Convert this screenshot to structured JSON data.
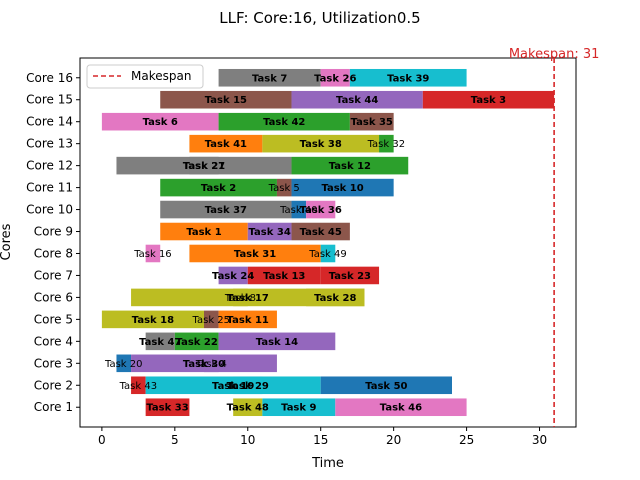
{
  "chart_data": {
    "type": "gantt",
    "title": "LLF: Core:16, Utilization0.5",
    "xlabel": "Time",
    "ylabel": "Cores",
    "xlim": [
      -1.5,
      32.5
    ],
    "xticks": [
      0,
      5,
      10,
      15,
      20,
      25,
      30
    ],
    "cores": [
      "Core 1",
      "Core 2",
      "Core 3",
      "Core 4",
      "Core 5",
      "Core 6",
      "Core 7",
      "Core 8",
      "Core 9",
      "Core 10",
      "Core 11",
      "Core 12",
      "Core 13",
      "Core 14",
      "Core 15",
      "Core 16"
    ],
    "makespan": 31,
    "makespan_label": "Makespan: 31",
    "makespan_color": "#d62728",
    "legend": {
      "label": "Makespan",
      "location": "upper-left"
    },
    "tasks": [
      {
        "core": 1,
        "name": "Task 33",
        "start": 3,
        "end": 6,
        "color": "#d62728"
      },
      {
        "core": 1,
        "name": "Task 48",
        "start": 9,
        "end": 11,
        "color": "#bcbd22"
      },
      {
        "core": 1,
        "name": "Task 9",
        "start": 11,
        "end": 16,
        "color": "#17becf"
      },
      {
        "core": 1,
        "name": "Task 46",
        "start": 16,
        "end": 25,
        "color": "#e377c2"
      },
      {
        "core": 2,
        "name": "Task 43",
        "start": 2,
        "end": 3,
        "color": "#d62728"
      },
      {
        "core": 2,
        "name": "Task 19",
        "start": 3,
        "end": 15,
        "color": "#17becf"
      },
      {
        "core": 2,
        "name": "Task 29",
        "start": 9,
        "end": 11,
        "color": "#17becf"
      },
      {
        "core": 2,
        "name": "Task 50",
        "start": 15,
        "end": 24,
        "color": "#1f77b4"
      },
      {
        "core": 3,
        "name": "Task 20",
        "start": 1,
        "end": 2,
        "color": "#1f77b4"
      },
      {
        "core": 3,
        "name": "Task 30",
        "start": 2,
        "end": 12,
        "color": "#9467bd"
      },
      {
        "core": 3,
        "name": "Task 4",
        "start": 7,
        "end": 8,
        "color": "#9467bd"
      },
      {
        "core": 4,
        "name": "Task 47",
        "start": 3,
        "end": 5,
        "color": "#7f7f7f"
      },
      {
        "core": 4,
        "name": "Task 22",
        "start": 5,
        "end": 8,
        "color": "#2ca02c"
      },
      {
        "core": 4,
        "name": "Task 14",
        "start": 8,
        "end": 16,
        "color": "#9467bd"
      },
      {
        "core": 5,
        "name": "Task 18",
        "start": 0,
        "end": 7,
        "color": "#bcbd22"
      },
      {
        "core": 5,
        "name": "Task 25",
        "start": 7,
        "end": 8,
        "color": "#8c564b"
      },
      {
        "core": 5,
        "name": "Task 11",
        "start": 8,
        "end": 12,
        "color": "#ff7f0e"
      },
      {
        "core": 6,
        "name": "Task 17",
        "start": 2,
        "end": 18,
        "color": "#bcbd22"
      },
      {
        "core": 6,
        "name": "Task 8",
        "start": 9,
        "end": 10,
        "color": "#bcbd22"
      },
      {
        "core": 6,
        "name": "Task 28",
        "start": 14,
        "end": 18,
        "color": "#bcbd22"
      },
      {
        "core": 7,
        "name": "Task 24",
        "start": 8,
        "end": 10,
        "color": "#9467bd"
      },
      {
        "core": 7,
        "name": "Task 13",
        "start": 10,
        "end": 15,
        "color": "#d62728"
      },
      {
        "core": 7,
        "name": "Task 23",
        "start": 15,
        "end": 19,
        "color": "#d62728"
      },
      {
        "core": 8,
        "name": "Task 16",
        "start": 3,
        "end": 4,
        "color": "#e377c2"
      },
      {
        "core": 8,
        "name": "Task 31",
        "start": 6,
        "end": 15,
        "color": "#ff7f0e"
      },
      {
        "core": 8,
        "name": "Task 49",
        "start": 15,
        "end": 16,
        "color": "#17becf"
      },
      {
        "core": 9,
        "name": "Task 1",
        "start": 4,
        "end": 10,
        "color": "#ff7f0e"
      },
      {
        "core": 9,
        "name": "Task 34",
        "start": 10,
        "end": 13,
        "color": "#9467bd"
      },
      {
        "core": 9,
        "name": "Task 45",
        "start": 13,
        "end": 17,
        "color": "#8c564b"
      },
      {
        "core": 10,
        "name": "Task 37",
        "start": 4,
        "end": 13,
        "color": "#7f7f7f"
      },
      {
        "core": 10,
        "name": "Task 40",
        "start": 13,
        "end": 14,
        "color": "#1f77b4"
      },
      {
        "core": 10,
        "name": "Task 36",
        "start": 14,
        "end": 16,
        "color": "#e377c2"
      },
      {
        "core": 11,
        "name": "Task 2",
        "start": 4,
        "end": 12,
        "color": "#2ca02c"
      },
      {
        "core": 11,
        "name": "Task 5",
        "start": 12,
        "end": 13,
        "color": "#8c564b"
      },
      {
        "core": 11,
        "name": "Task 10",
        "start": 13,
        "end": 20,
        "color": "#1f77b4"
      },
      {
        "core": 12,
        "name": "Task 21",
        "start": 1,
        "end": 13,
        "color": "#7f7f7f"
      },
      {
        "core": 12,
        "name": "Task 27",
        "start": 6,
        "end": 8,
        "color": "#7f7f7f"
      },
      {
        "core": 12,
        "name": "Task 12",
        "start": 13,
        "end": 21,
        "color": "#2ca02c"
      },
      {
        "core": 13,
        "name": "Task 41",
        "start": 6,
        "end": 11,
        "color": "#ff7f0e"
      },
      {
        "core": 13,
        "name": "Task 38",
        "start": 11,
        "end": 19,
        "color": "#bcbd22"
      },
      {
        "core": 13,
        "name": "Task 32",
        "start": 19,
        "end": 20,
        "color": "#2ca02c"
      },
      {
        "core": 14,
        "name": "Task 6",
        "start": 0,
        "end": 8,
        "color": "#e377c2"
      },
      {
        "core": 14,
        "name": "Task 42",
        "start": 8,
        "end": 17,
        "color": "#2ca02c"
      },
      {
        "core": 14,
        "name": "Task 35",
        "start": 17,
        "end": 20,
        "color": "#8c564b"
      },
      {
        "core": 15,
        "name": "Task 15",
        "start": 4,
        "end": 13,
        "color": "#8c564b"
      },
      {
        "core": 15,
        "name": "Task 44",
        "start": 13,
        "end": 22,
        "color": "#9467bd"
      },
      {
        "core": 15,
        "name": "Task 3",
        "start": 22,
        "end": 31,
        "color": "#d62728"
      },
      {
        "core": 16,
        "name": "Task 7",
        "start": 8,
        "end": 15,
        "color": "#7f7f7f"
      },
      {
        "core": 16,
        "name": "Task 26",
        "start": 15,
        "end": 17,
        "color": "#e377c2"
      },
      {
        "core": 16,
        "name": "Task 39",
        "start": 17,
        "end": 25,
        "color": "#17becf"
      }
    ]
  }
}
